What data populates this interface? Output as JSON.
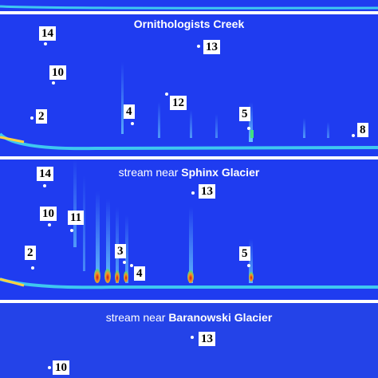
{
  "colors": {
    "background": "#1f3cf0",
    "background_dark": "#1730d8",
    "baseline": "#3ec8f0",
    "peak": "#6fd8ff",
    "hot_peak": "#c01a1a",
    "label_bg": "#ffffff"
  },
  "panels": [
    {
      "id": "top-strip",
      "title_prefix": "",
      "title_bold": "",
      "labels": []
    },
    {
      "id": "ornithologists",
      "title_prefix": "",
      "title_bold": "Ornithologists Creek",
      "labels": [
        "14",
        "13",
        "10",
        "12",
        "4",
        "2",
        "5",
        "8"
      ]
    },
    {
      "id": "sphinx",
      "title_prefix": "stream near ",
      "title_bold": "Sphinx Glacier",
      "labels": [
        "14",
        "13",
        "10",
        "11",
        "2",
        "3",
        "4",
        "5"
      ]
    },
    {
      "id": "baranowski",
      "title_prefix": "stream near ",
      "title_bold": "Baranowski Glacier",
      "labels": [
        "13",
        "10"
      ]
    }
  ]
}
